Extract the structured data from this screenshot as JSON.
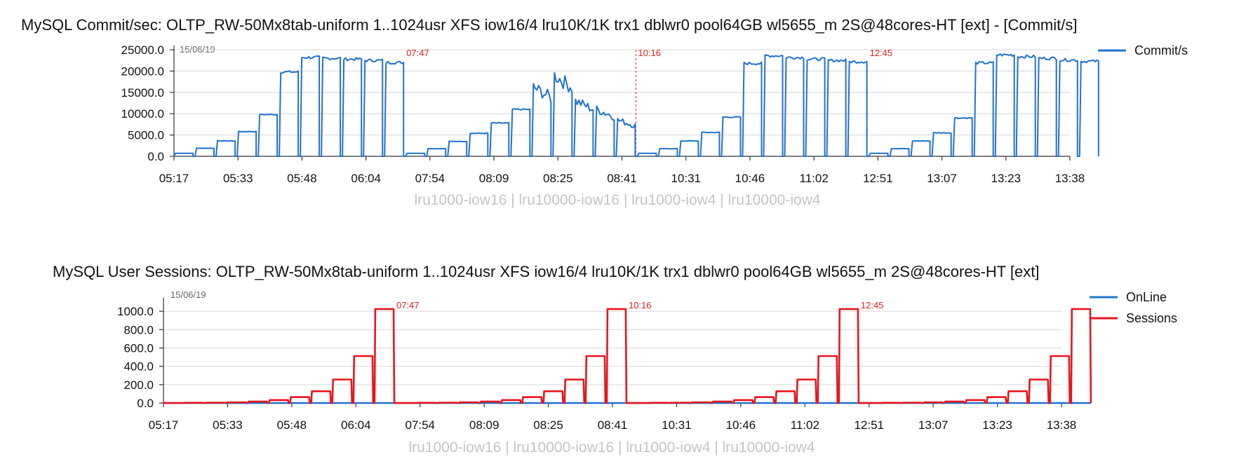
{
  "charts": [
    {
      "title": "MySQL Commit/sec: OLTP_RW-50Mx8tab-uniform 1..1024usr XFS iow16/4 lru10K/1K trx1 dblwr0 pool64GB wl5655_m 2S@48cores-HT [ext] - [Commit/s]",
      "date_label": "15/06/19",
      "xlabel": "lru1000-iow16 | lru10000-iow16 | lru1000-iow4 | lru10000-iow4",
      "y_ticks": [
        "0.0",
        "5000.0",
        "10000.0",
        "15000.0",
        "20000.0",
        "25000.0"
      ],
      "x_ticks": [
        "05:17",
        "05:33",
        "05:48",
        "06:04",
        "07:54",
        "08:09",
        "08:25",
        "08:41",
        "10:31",
        "10:46",
        "11:02",
        "12:51",
        "13:07",
        "13:23",
        "13:38"
      ],
      "markers": [
        "07:47",
        "10:16",
        "12:45"
      ],
      "legend": [
        "Commit/s"
      ]
    },
    {
      "title": "MySQL User Sessions: OLTP_RW-50Mx8tab-uniform 1..1024usr XFS iow16/4 lru10K/1K trx1 dblwr0 pool64GB wl5655_m 2S@48cores-HT [ext]",
      "date_label": "15/06/19",
      "xlabel": "lru1000-iow16 | lru10000-iow16 | lru1000-iow4 | lru10000-iow4",
      "y_ticks": [
        "0.0",
        "200.0",
        "400.0",
        "600.0",
        "800.0",
        "1000.0"
      ],
      "x_ticks": [
        "05:17",
        "05:33",
        "05:48",
        "06:04",
        "07:54",
        "08:09",
        "08:25",
        "08:41",
        "10:31",
        "10:46",
        "11:02",
        "12:51",
        "13:07",
        "13:23",
        "13:38"
      ],
      "markers": [
        "07:47",
        "10:16",
        "12:45"
      ],
      "legend": [
        "OnLine",
        "Sessions"
      ]
    }
  ],
  "chart_data": [
    {
      "type": "line",
      "ylim": [
        0,
        25000
      ],
      "x_ticks": [
        "05:17",
        "05:33",
        "05:48",
        "06:04",
        "07:54",
        "08:09",
        "08:25",
        "08:41",
        "10:31",
        "10:46",
        "11:02",
        "12:51",
        "13:07",
        "13:23",
        "13:38"
      ],
      "user_levels": [
        1,
        2,
        4,
        8,
        16,
        32,
        64,
        128,
        256,
        512,
        1024
      ],
      "series": [
        {
          "name": "Commit/s",
          "color": "#1f73cf",
          "blocks": [
            [
              700,
              1900,
              3600,
              5800,
              9800,
              19800,
              23200,
              23000,
              22800,
              22500,
              22000
            ],
            [
              700,
              1800,
              3500,
              5400,
              7800,
              11000,
              16200,
              19000,
              13000,
              11000,
              8500
            ],
            [
              700,
              1800,
              3600,
              5600,
              9200,
              21800,
              23600,
              23200,
              22800,
              22500,
              22200
            ],
            [
              700,
              1800,
              3600,
              5500,
              9000,
              21900,
              23800,
              23400,
              23000,
              22600,
              22300
            ]
          ]
        }
      ]
    },
    {
      "type": "line",
      "ylim": [
        0,
        1100
      ],
      "x_ticks": [
        "05:17",
        "05:33",
        "05:48",
        "06:04",
        "07:54",
        "08:09",
        "08:25",
        "08:41",
        "10:31",
        "10:46",
        "11:02",
        "12:51",
        "13:07",
        "13:23",
        "13:38"
      ],
      "user_levels": [
        1,
        2,
        4,
        8,
        16,
        32,
        64,
        128,
        256,
        512,
        1024
      ],
      "series": [
        {
          "name": "OnLine",
          "color": "#1f73cf",
          "blocks": [
            [
              0,
              0,
              0,
              0,
              0,
              0,
              0,
              0,
              0,
              0,
              0
            ],
            [
              0,
              0,
              0,
              0,
              0,
              0,
              0,
              0,
              0,
              0,
              0
            ],
            [
              0,
              0,
              0,
              0,
              0,
              0,
              0,
              0,
              0,
              0,
              0
            ],
            [
              0,
              0,
              0,
              0,
              0,
              0,
              0,
              0,
              0,
              0,
              0
            ]
          ]
        },
        {
          "name": "Sessions",
          "color": "#e8151b",
          "blocks": [
            [
              1,
              2,
              4,
              8,
              16,
              32,
              64,
              128,
              256,
              512,
              1024
            ],
            [
              1,
              2,
              4,
              8,
              16,
              32,
              64,
              128,
              256,
              512,
              1024
            ],
            [
              1,
              2,
              4,
              8,
              16,
              32,
              64,
              128,
              256,
              512,
              1024
            ],
            [
              1,
              2,
              4,
              8,
              16,
              32,
              64,
              128,
              256,
              512,
              1024
            ]
          ]
        }
      ]
    }
  ]
}
